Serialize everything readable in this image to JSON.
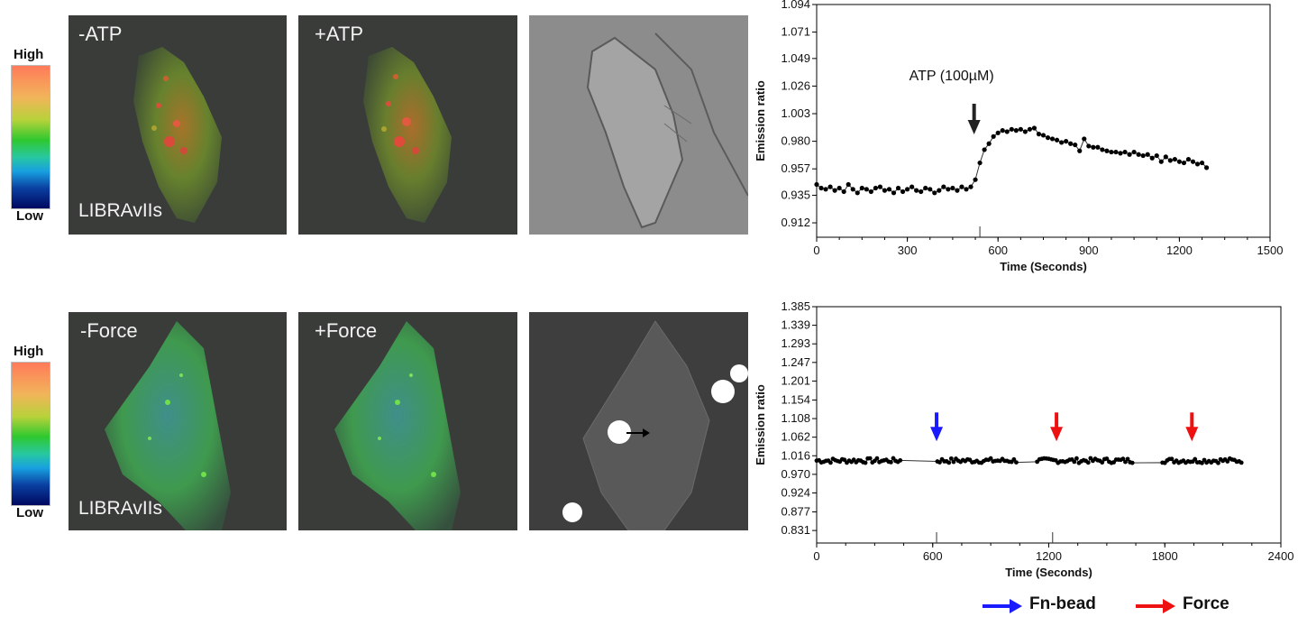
{
  "colorbar": {
    "high_label": "High",
    "low_label": "Low"
  },
  "top_row": {
    "panel_minus_label": "-ATP",
    "panel_plus_label": "+ATP",
    "probe_label": "LIBRAvIIs"
  },
  "bottom_row": {
    "panel_minus_label": "-Force",
    "panel_plus_label": "+Force",
    "probe_label": "LIBRAvIIs"
  },
  "legend": {
    "blue_label": "Fn-bead",
    "red_label": "Force",
    "blue_color": "#1a1aff",
    "red_color": "#ee1111"
  },
  "chart_data": [
    {
      "type": "line",
      "xlabel": "Time (Seconds)",
      "ylabel": "Emission ratio",
      "xlim": [
        0,
        1500
      ],
      "ylim": [
        0.9,
        1.094
      ],
      "xticks": [
        0,
        300,
        600,
        900,
        1200,
        1500
      ],
      "yticks": [
        0.912,
        0.935,
        0.957,
        0.98,
        1.003,
        1.026,
        1.049,
        1.071,
        1.094
      ],
      "ytick_labels": [
        "0.912",
        "0.935",
        "0.957",
        "0.980",
        "1.003",
        "1.026",
        "1.049",
        "1.071",
        "1.094"
      ],
      "event_ticks": [
        540
      ],
      "annotation": {
        "text": "ATP (100µM)",
        "x": 500,
        "arrow_color": "#222222"
      },
      "series": [
        {
          "x": [
            0,
            15,
            30,
            45,
            60,
            75,
            90,
            105,
            120,
            135,
            150,
            165,
            180,
            195,
            210,
            225,
            240,
            255,
            270,
            285,
            300,
            315,
            330,
            345,
            360,
            375,
            390,
            405,
            420,
            435,
            450,
            465,
            480,
            495,
            510,
            525,
            540,
            555,
            570,
            585,
            600,
            615,
            630,
            645,
            660,
            675,
            690,
            705,
            720,
            735,
            750,
            765,
            780,
            795,
            810,
            825,
            840,
            855,
            870,
            885,
            900,
            915,
            930,
            945,
            960,
            975,
            990,
            1005,
            1020,
            1035,
            1050,
            1065,
            1080,
            1095,
            1110,
            1125,
            1140,
            1155,
            1170,
            1185,
            1200,
            1215,
            1230,
            1245,
            1260,
            1275,
            1290
          ],
          "y": [
            0.944,
            0.941,
            0.94,
            0.942,
            0.939,
            0.941,
            0.938,
            0.944,
            0.94,
            0.937,
            0.941,
            0.94,
            0.938,
            0.941,
            0.942,
            0.939,
            0.94,
            0.937,
            0.941,
            0.938,
            0.94,
            0.942,
            0.939,
            0.938,
            0.941,
            0.94,
            0.937,
            0.939,
            0.942,
            0.94,
            0.941,
            0.939,
            0.942,
            0.94,
            0.942,
            0.948,
            0.962,
            0.973,
            0.978,
            0.984,
            0.987,
            0.989,
            0.988,
            0.99,
            0.989,
            0.99,
            0.988,
            0.99,
            0.991,
            0.986,
            0.985,
            0.983,
            0.982,
            0.981,
            0.979,
            0.98,
            0.978,
            0.977,
            0.972,
            0.982,
            0.976,
            0.975,
            0.975,
            0.973,
            0.972,
            0.971,
            0.971,
            0.97,
            0.971,
            0.969,
            0.971,
            0.969,
            0.968,
            0.969,
            0.966,
            0.968,
            0.963,
            0.967,
            0.964,
            0.965,
            0.963,
            0.962,
            0.965,
            0.963,
            0.961,
            0.962,
            0.958
          ]
        }
      ]
    },
    {
      "type": "line",
      "xlabel": "Time (Seconds)",
      "ylabel": "Emission ratio",
      "xlim": [
        0,
        2400
      ],
      "ylim": [
        0.8,
        1.385
      ],
      "xticks": [
        0,
        600,
        1200,
        1800,
        2400
      ],
      "yticks": [
        0.831,
        0.877,
        0.924,
        0.97,
        1.016,
        1.062,
        1.108,
        1.154,
        1.201,
        1.247,
        1.293,
        1.339,
        1.385
      ],
      "ytick_labels": [
        "0.831",
        "0.877",
        "0.924",
        "0.970",
        "1.016",
        "1.062",
        "1.108",
        "1.154",
        "1.201",
        "1.247",
        "1.293",
        "1.339",
        "1.385"
      ],
      "event_ticks": [
        620,
        1220
      ],
      "event_arrows": [
        {
          "x": 620,
          "color": "blue"
        },
        {
          "x": 1240,
          "color": "red"
        },
        {
          "x": 1940,
          "color": "red"
        }
      ]
    }
  ]
}
